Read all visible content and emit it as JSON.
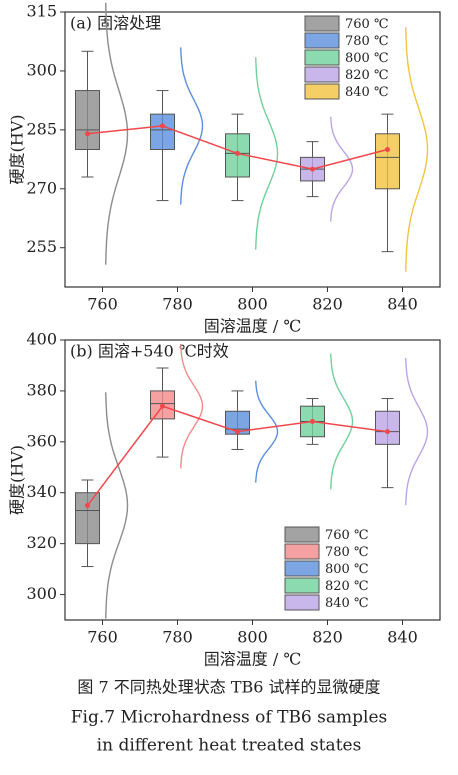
{
  "chart_data": [
    {
      "type": "box",
      "title": "(a) 固溶处理",
      "xlabel": "固溶温度 / ℃",
      "ylabel": "硬度(HV)",
      "x": [
        760,
        780,
        800,
        820,
        840
      ],
      "xlim": [
        750,
        850
      ],
      "xticks": [
        760,
        780,
        800,
        820,
        840
      ],
      "ylim": [
        245,
        315
      ],
      "yticks": [
        255,
        270,
        285,
        300,
        315
      ],
      "legend": "upper right",
      "mean_line_color": "#f0474b",
      "series": [
        {
          "name": "760 ℃",
          "color": "#8c8c8c",
          "whisker_low": 273,
          "q1": 280,
          "median": 285,
          "q3": 295,
          "whisker_high": 305,
          "mean": 284
        },
        {
          "name": "780 ℃",
          "color": "#5b8fdc",
          "whisker_low": 267,
          "q1": 280,
          "median": 285,
          "q3": 289,
          "whisker_high": 295,
          "mean": 286
        },
        {
          "name": "800 ℃",
          "color": "#6fd19b",
          "whisker_low": 267,
          "q1": 273,
          "median": 279,
          "q3": 284,
          "whisker_high": 289,
          "mean": 279
        },
        {
          "name": "820 ℃",
          "color": "#bba4e6",
          "whisker_low": 268,
          "q1": 272,
          "median": 275,
          "q3": 278,
          "whisker_high": 282,
          "mean": 275
        },
        {
          "name": "840 ℃",
          "color": "#f3c33f",
          "whisker_low": 254,
          "q1": 270,
          "median": 278,
          "q3": 284,
          "whisker_high": 289,
          "mean": 280
        }
      ]
    },
    {
      "type": "box",
      "title": "(b) 固溶+540 ℃时效",
      "xlabel": "固溶温度 / ℃",
      "ylabel": "硬度(HV)",
      "x": [
        760,
        780,
        800,
        820,
        840
      ],
      "xlim": [
        750,
        850
      ],
      "xticks": [
        760,
        780,
        800,
        820,
        840
      ],
      "ylim": [
        290,
        400
      ],
      "yticks": [
        300,
        320,
        340,
        360,
        380,
        400
      ],
      "legend": "lower center",
      "mean_line_color": "#f0474b",
      "series": [
        {
          "name": "760 ℃",
          "color": "#8c8c8c",
          "whisker_low": 311,
          "q1": 320,
          "median": 333,
          "q3": 340,
          "whisker_high": 345,
          "mean": 335
        },
        {
          "name": "780 ℃",
          "color": "#f48a8a",
          "whisker_low": 354,
          "q1": 369,
          "median": 375,
          "q3": 380,
          "whisker_high": 389,
          "mean": 374
        },
        {
          "name": "800 ℃",
          "color": "#5b8fdc",
          "whisker_low": 357,
          "q1": 363,
          "median": 365,
          "q3": 372,
          "whisker_high": 380,
          "mean": 364
        },
        {
          "name": "820 ℃",
          "color": "#6fd19b",
          "whisker_low": 359,
          "q1": 362,
          "median": 368,
          "q3": 374,
          "whisker_high": 377,
          "mean": 368
        },
        {
          "name": "840 ℃",
          "color": "#bba4e6",
          "whisker_low": 342,
          "q1": 359,
          "median": 364,
          "q3": 372,
          "whisker_high": 377,
          "mean": 364
        }
      ]
    }
  ],
  "caption": {
    "zh": "图 7  不同热处理状态 TB6 试样的显微硬度",
    "en1": "Fig.7  Microhardness of TB6 samples",
    "en2": "in different heat treated states"
  }
}
